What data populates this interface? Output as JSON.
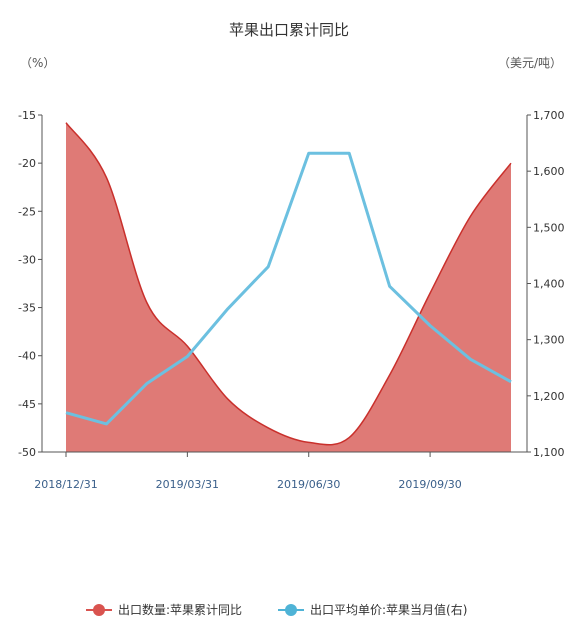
{
  "chart_data": {
    "type": "area+line",
    "title": "苹果出口累计同比",
    "y_left_unit": "（%）",
    "y_right_unit": "（美元/吨）",
    "y_left_ticks": [
      "-15",
      "-20",
      "-25",
      "-30",
      "-35",
      "-40",
      "-45",
      "-50"
    ],
    "y_right_ticks": [
      "1,700",
      "1,600",
      "1,500",
      "1,400",
      "1,300",
      "1,200",
      "1,100"
    ],
    "ylim_left": [
      -50,
      -15
    ],
    "ylim_right": [
      1100,
      1700
    ],
    "x_labels": [
      "2018/12/31",
      "2019/03/31",
      "2019/06/30",
      "2019/09/30"
    ],
    "x_months": [
      "2018-12",
      "2019-01",
      "2019-02",
      "2019-03",
      "2019-04",
      "2019-05",
      "2019-06",
      "2019-07",
      "2019-08",
      "2019-09",
      "2019-10",
      "2019-11"
    ],
    "series": [
      {
        "name": "出口数量:苹果累计同比",
        "axis": "left",
        "type": "area",
        "color": "#d9534f",
        "values": [
          -15.8,
          -21.5,
          -34.5,
          -39.0,
          -44.5,
          -47.5,
          -49.0,
          -48.5,
          -42.0,
          -33.5,
          -25.5,
          -20.0
        ]
      },
      {
        "name": "出口平均单价:苹果当月值(右)",
        "axis": "right",
        "type": "line",
        "color": "#4fb3d6",
        "values": [
          1170,
          1150,
          1222,
          1270,
          1355,
          1430,
          1632,
          1632,
          1395,
          1325,
          1265,
          1225
        ]
      }
    ],
    "grid": false,
    "legend_position": "bottom"
  }
}
